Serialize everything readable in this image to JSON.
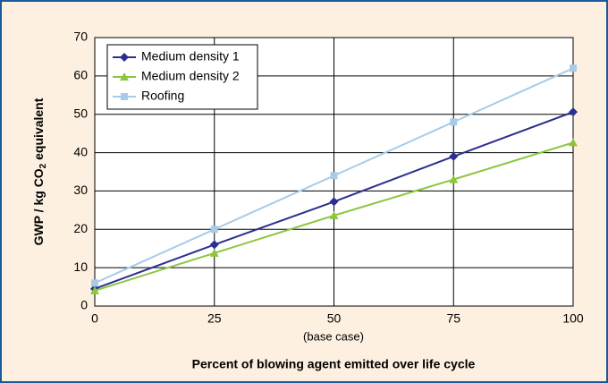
{
  "chart_data": {
    "type": "line",
    "xlabel": "Percent of blowing agent emitted over life cycle",
    "ylabel": [
      "GWP / kg CO",
      "2",
      " equivalent"
    ],
    "annotations": [
      "(base case)"
    ],
    "x": [
      0,
      25,
      50,
      75,
      100
    ],
    "series": [
      {
        "name": "Medium density 1",
        "color": "#2b2f8f",
        "marker": "diamond",
        "values": [
          4.5,
          16,
          27.2,
          39,
          50.6
        ]
      },
      {
        "name": "Medium density 2",
        "color": "#8cc63f",
        "marker": "triangle",
        "values": [
          4,
          13.8,
          23.6,
          33,
          42.6
        ]
      },
      {
        "name": "Roofing",
        "color": "#a8cce8",
        "marker": "square",
        "values": [
          6,
          20,
          34,
          48,
          62
        ]
      }
    ],
    "xlim": [
      0,
      100
    ],
    "xticks": [
      0,
      25,
      50,
      75,
      100
    ],
    "ylim": [
      0,
      70
    ],
    "yticks": [
      0,
      10,
      20,
      30,
      40,
      50,
      60,
      70
    ],
    "grid": true,
    "legend": "upper left"
  }
}
